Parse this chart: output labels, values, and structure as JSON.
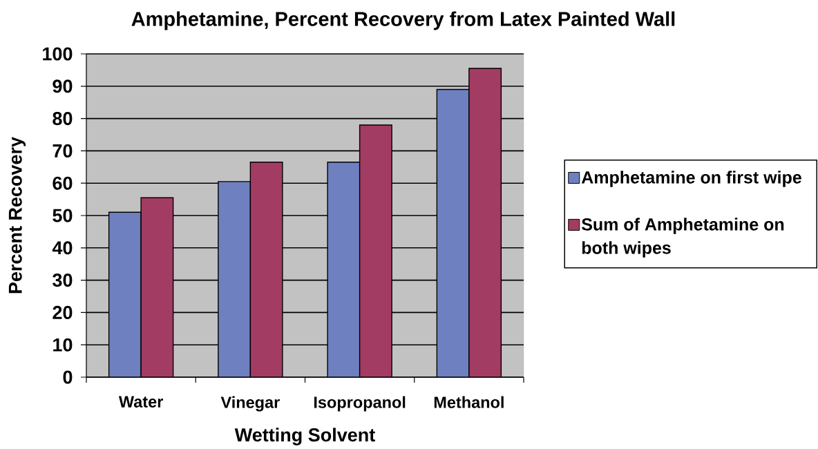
{
  "chart_data": {
    "type": "bar",
    "title": "Amphetamine, Percent Recovery from Latex Painted Wall",
    "xlabel": "Wetting Solvent",
    "ylabel": "Percent Recovery",
    "categories": [
      "Water",
      "Vinegar",
      "Isopropanol",
      "Methanol"
    ],
    "series": [
      {
        "name": "Amphetamine on first wipe",
        "color": "#6f80c0",
        "values": [
          51,
          60.5,
          66.5,
          89
        ]
      },
      {
        "name": "Sum of Amphetamine on both wipes",
        "color": "#a33c63",
        "values": [
          55.5,
          66.5,
          78,
          95.5
        ]
      }
    ],
    "ylim": [
      0,
      100
    ],
    "yticks": [
      0,
      10,
      20,
      30,
      40,
      50,
      60,
      70,
      80,
      90,
      100
    ],
    "grid": "y",
    "legend": "right"
  }
}
